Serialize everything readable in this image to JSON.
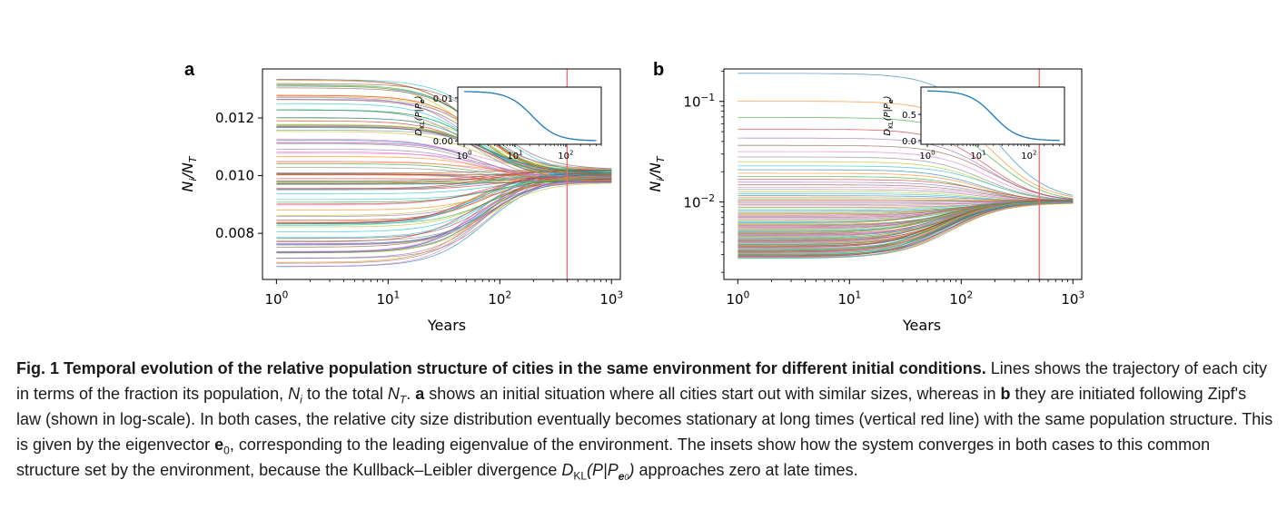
{
  "figure": {
    "panel_a_letter": "a",
    "panel_b_letter": "b",
    "xlabel": "Years",
    "ylabel": "N_i/N_T",
    "inset_ylabel": "D_KL(P|P_e0)"
  },
  "chart_data": [
    {
      "panel": "a",
      "type": "line",
      "xscale": "log",
      "yscale": "linear",
      "xlim": [
        0.75,
        1200
      ],
      "ylim": [
        0.0064,
        0.0137
      ],
      "xticks": [
        "10^0",
        "10^1",
        "10^2",
        "10^3"
      ],
      "yticks": [
        "0.008",
        "0.010",
        "0.012"
      ],
      "n_series": 100,
      "initial_range": [
        0.0068,
        0.0134
      ],
      "final_value": 0.01,
      "convergence_time": 400,
      "vertical_line": {
        "x": 400,
        "color": "#e87070"
      },
      "inset": {
        "type": "line",
        "xscale": "log",
        "xticks": [
          "10^0",
          "10^1",
          "10^2"
        ],
        "yticks": [
          "0.00",
          "0.01"
        ],
        "start_value": 0.0115,
        "end_value": 0.0
      }
    },
    {
      "panel": "b",
      "type": "line",
      "xscale": "log",
      "yscale": "log",
      "xlim": [
        0.75,
        1200
      ],
      "ylim": [
        0.0017,
        0.21
      ],
      "xticks": [
        "10^0",
        "10^1",
        "10^2",
        "10^3"
      ],
      "yticks": [
        "10^-1",
        "10^-2"
      ],
      "n_series": 100,
      "initial_distribution": "zipf",
      "initial_max": 0.19,
      "initial_min": 0.0025,
      "final_value": 0.01,
      "convergence_time": 500,
      "vertical_line": {
        "x": 500,
        "color": "#e87070"
      },
      "inset": {
        "type": "line",
        "xscale": "log",
        "xticks": [
          "10^0",
          "10^1",
          "10^2"
        ],
        "yticks": [
          "0.0",
          "0.5"
        ],
        "start_value": 0.95,
        "end_value": 0.0
      }
    }
  ],
  "caption": {
    "title": "Fig. 1 Temporal evolution of the relative population structure of cities in the same environment for different initial conditions.",
    "s1": " Lines shows the trajectory of each city in terms of the fraction its population, ",
    "s2": " to the total ",
    "s3": ". ",
    "a_letter": "a",
    "s4": " shows an initial situation where all cities start out with similar sizes, whereas in ",
    "b_letter": "b",
    "s5": " they are initiated following Zipf's law (shown in log-scale). In both cases, the relative city size distribution eventually becomes stationary at long times (vertical red line) with the same population structure. This is given by the eigenvector ",
    "s6": ", corresponding to the leading eigenvalue of the environment. The insets show how the system converges in both cases to this common structure set by the environment, because the Kullback–Leibler divergence ",
    "s7": " approaches zero at late times."
  }
}
